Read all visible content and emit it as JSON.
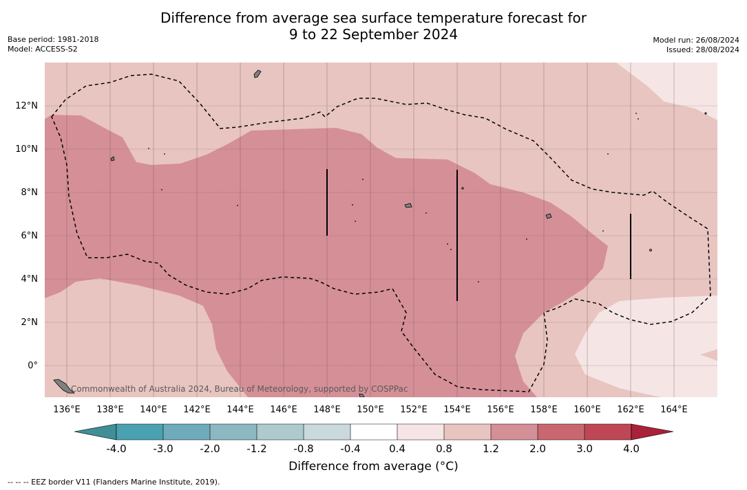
{
  "title_line1": "Difference from average sea surface temperature forecast for",
  "title_line2": "9 to 22 September 2024",
  "base_period": "Base period: 1981-2018",
  "model": "Model: ACCESS-S2",
  "model_run": "Model run: 26/08/2024",
  "issued": "Issued: 28/08/2024",
  "copyright": "Commonwealth of Australia 2024, Bureau of Meteorology, supported by COSPPac",
  "lon_labels": [
    "136°E",
    "138°E",
    "140°E",
    "142°E",
    "144°E",
    "146°E",
    "148°E",
    "150°E",
    "152°E",
    "154°E",
    "156°E",
    "158°E",
    "160°E",
    "162°E",
    "164°E"
  ],
  "lat_labels": [
    "12°N",
    "10°N",
    "8°N",
    "6°N",
    "4°N",
    "2°N",
    "0°"
  ],
  "colorbar": {
    "label": "Difference from average (°C)",
    "ticks": [
      "-4.0",
      "-3.0",
      "-2.0",
      "-1.2",
      "-0.8",
      "-0.4",
      "0.4",
      "0.8",
      "1.2",
      "2.0",
      "3.0",
      "4.0"
    ],
    "colors": [
      "#3f8f96",
      "#4aa1b2",
      "#6eacbb",
      "#8db8c2",
      "#aecacd",
      "#c9d9dd",
      "#ffffff",
      "#f5e6e5",
      "#e8c5c1",
      "#d58f97",
      "#c96771",
      "#bf4755",
      "#a8223a"
    ]
  },
  "footnote": "--  --  -- EEZ border V11 (Flanders Marine Institute, 2019).",
  "legend_colors": {
    "anom_04_08": "#f5e6e5",
    "anom_08_12": "#e8c5c1",
    "anom_12_20": "#d58f97",
    "eez_border": "#000000"
  }
}
